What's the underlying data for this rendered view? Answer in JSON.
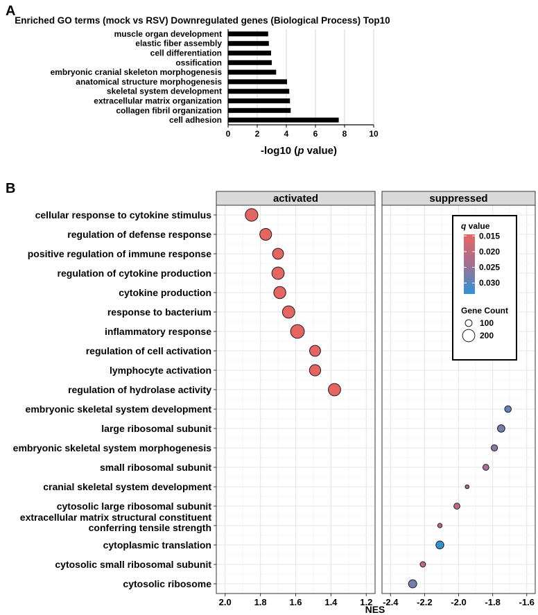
{
  "chart_data": [
    {
      "panel_label": "A",
      "type": "bar",
      "orientation": "horizontal",
      "title": "Enriched GO terms (mock vs RSV) Downregulated genes  (Biological Process) Top10",
      "xlabel_prefix": "-log10 (",
      "xlabel_italic": "p",
      "xlabel_suffix": " value)",
      "xlim": [
        0,
        10
      ],
      "xticks": [
        "0",
        "2",
        "4",
        "6",
        "8",
        "10"
      ],
      "grid": true,
      "bar_color": "#000000",
      "categories": [
        "muscle organ development",
        "elastic fiber assembly",
        "cell differentiation",
        "ossification",
        "embryonic cranial skeleton morphogenesis",
        "anatomical structure morphogenesis",
        "skeletal system development",
        "extracellular matrix organization",
        "collagen fibril organization",
        "cell adhesion"
      ],
      "values": [
        2.75,
        2.8,
        2.95,
        3.0,
        3.3,
        4.05,
        4.2,
        4.25,
        4.3,
        7.6
      ]
    },
    {
      "panel_label": "B",
      "type": "scatter",
      "xlabel": "NES",
      "categories": [
        "cellular response to cytokine stimulus",
        "regulation of defense response",
        "positive regulation of immune response",
        "regulation of cytokine production",
        "cytokine production",
        "response to bacterium",
        "inflammatory response",
        "regulation of cell activation",
        "lymphocyte activation",
        "regulation of hydrolase activity",
        "embryonic skeletal system development",
        "large ribosomal subunit",
        "embryonic skeletal system morphogenesis",
        "small ribosomal subunit",
        "cranial skeletal system development",
        "cytosolic large ribosomal subunit",
        [
          "extracellular matrix structural constituent",
          "conferring tensile strength"
        ],
        "cytoplasmic translation",
        "cytosolic small ribosomal subunit",
        "cytosolic ribosome"
      ],
      "facets": [
        {
          "name": "activated",
          "xlim": [
            2.05,
            1.15
          ],
          "xticks": [
            2.0,
            1.8,
            1.6,
            1.4,
            1.2
          ],
          "xtick_labels": [
            "2.0",
            "1.8",
            "1.6",
            "1.4",
            "1.2"
          ],
          "points": [
            {
              "row": 0,
              "nes": 1.85,
              "q": 0.015,
              "count": 205
            },
            {
              "row": 1,
              "nes": 1.77,
              "q": 0.015,
              "count": 190
            },
            {
              "row": 2,
              "nes": 1.7,
              "q": 0.015,
              "count": 175
            },
            {
              "row": 3,
              "nes": 1.7,
              "q": 0.015,
              "count": 200
            },
            {
              "row": 4,
              "nes": 1.69,
              "q": 0.015,
              "count": 195
            },
            {
              "row": 5,
              "nes": 1.64,
              "q": 0.015,
              "count": 200
            },
            {
              "row": 6,
              "nes": 1.59,
              "q": 0.015,
              "count": 225
            },
            {
              "row": 7,
              "nes": 1.49,
              "q": 0.015,
              "count": 175
            },
            {
              "row": 8,
              "nes": 1.49,
              "q": 0.015,
              "count": 180
            },
            {
              "row": 9,
              "nes": 1.38,
              "q": 0.015,
              "count": 200
            }
          ]
        },
        {
          "name": "suppressed",
          "xlim": [
            -2.45,
            -1.55
          ],
          "xticks": [
            -2.4,
            -2.2,
            -2.0,
            -1.8,
            -1.6
          ],
          "xtick_labels": [
            "-2.4",
            "-2.2",
            "-2.0",
            "-1.8",
            "-1.6"
          ],
          "points": [
            {
              "row": 10,
              "nes": -1.71,
              "q": 0.029,
              "count": 95
            },
            {
              "row": 11,
              "nes": -1.75,
              "q": 0.028,
              "count": 110
            },
            {
              "row": 12,
              "nes": -1.79,
              "q": 0.026,
              "count": 90
            },
            {
              "row": 13,
              "nes": -1.84,
              "q": 0.023,
              "count": 85
            },
            {
              "row": 14,
              "nes": -1.95,
              "q": 0.024,
              "count": 45
            },
            {
              "row": 15,
              "nes": -2.01,
              "q": 0.021,
              "count": 85
            },
            {
              "row": 16,
              "nes": -2.11,
              "q": 0.02,
              "count": 55
            },
            {
              "row": 17,
              "nes": -2.11,
              "q": 0.033,
              "count": 120
            },
            {
              "row": 18,
              "nes": -2.21,
              "q": 0.021,
              "count": 75
            },
            {
              "row": 19,
              "nes": -2.27,
              "q": 0.028,
              "count": 125
            }
          ]
        }
      ],
      "legend": {
        "placement": "top-right",
        "color_title_italic": "q",
        "color_title_suffix": " value",
        "color_ticks": [
          "0.015",
          "0.020",
          "0.025",
          "0.030"
        ],
        "color_tick_values": [
          0.015,
          0.02,
          0.025,
          0.03
        ],
        "color_range": [
          0.0145,
          0.0335
        ],
        "color_low": "#e8645f",
        "color_high": "#3a8fd0",
        "size_title": "Gene Count",
        "size_labels": [
          "100",
          "200"
        ],
        "size_values": [
          100,
          200
        ]
      }
    }
  ]
}
